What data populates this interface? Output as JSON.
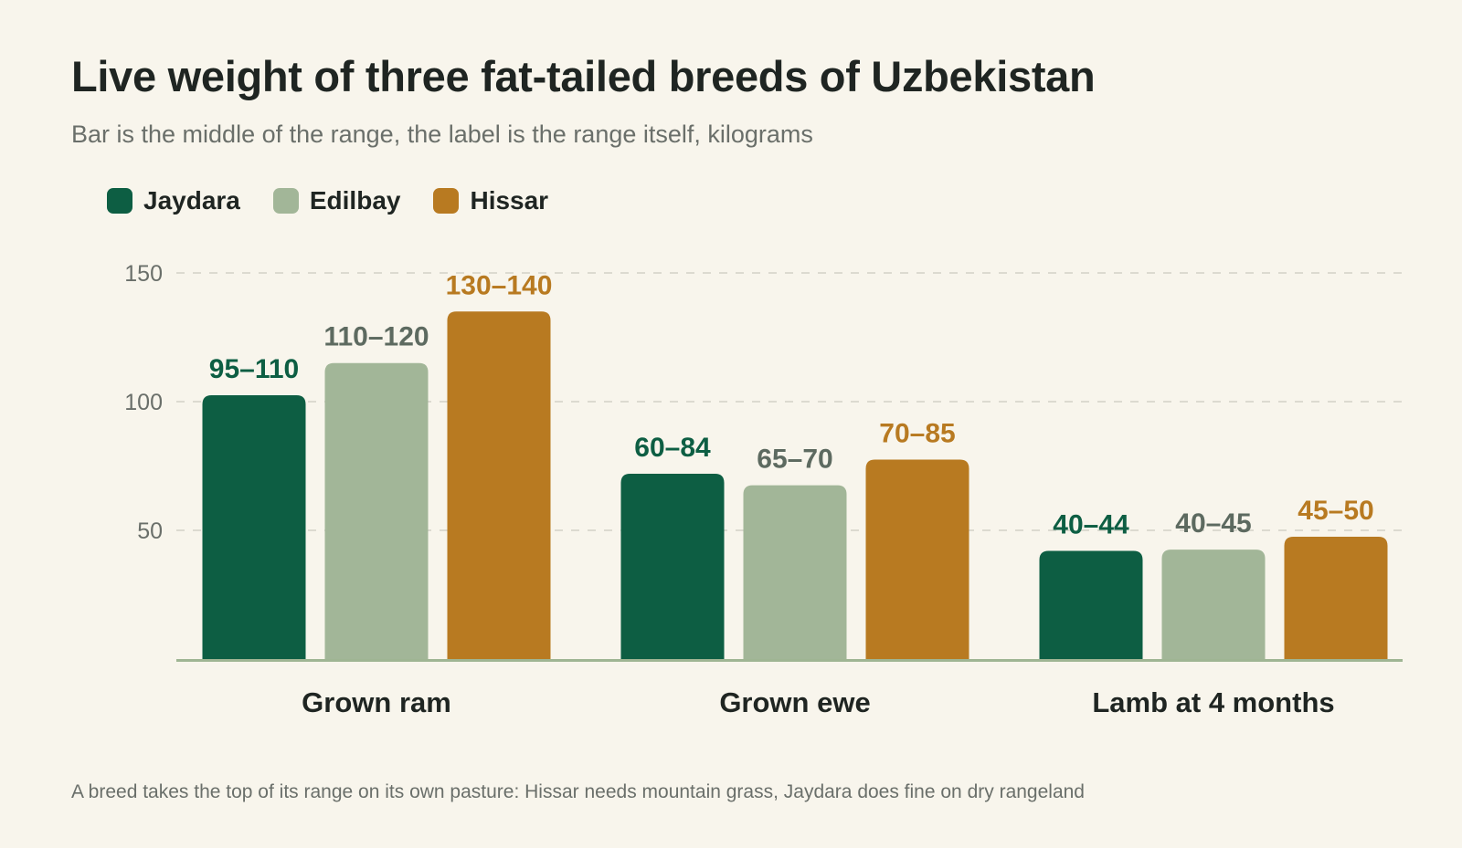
{
  "title": "Live weight of three fat-tailed breeds of Uzbekistan",
  "subtitle": "Bar is the middle of the range, the label is the range itself, kilograms",
  "note": "A breed takes the top of its range on its own pasture: Hissar needs mountain grass, Jaydara does fine on dry rangeland",
  "colors": {
    "background": "#f8f5ec",
    "grid": "#dcdad0",
    "axis": "#9fb593",
    "tick_text": "#6a6f6a",
    "category_text": "#1f2522"
  },
  "chart_data": {
    "type": "bar",
    "title": "Live weight of three fat-tailed breeds of Uzbekistan",
    "subtitle": "Bar is the middle of the range, the label is the range itself, kilograms",
    "categories": [
      "Grown ram",
      "Grown ewe",
      "Lamb at 4 months"
    ],
    "yticks": [
      "50",
      "100",
      "150"
    ],
    "ylim": [
      0,
      150
    ],
    "grid": true,
    "legend_position": "top-left",
    "series": [
      {
        "name": "Jaydara",
        "color": "#0d5e43",
        "label_color": "#0d5e43",
        "values": [
          102.5,
          72,
          42
        ],
        "labels": [
          "95–110",
          "60–84",
          "40–44"
        ]
      },
      {
        "name": "Edilbay",
        "color": "#a2b698",
        "label_color": "#5d6a60",
        "values": [
          115,
          67.5,
          42.5
        ],
        "labels": [
          "110–120",
          "65–70",
          "40–45"
        ]
      },
      {
        "name": "Hissar",
        "color": "#b87a21",
        "label_color": "#b87a21",
        "values": [
          135,
          77.5,
          47.5
        ],
        "labels": [
          "130–140",
          "70–85",
          "45–50"
        ]
      }
    ]
  }
}
